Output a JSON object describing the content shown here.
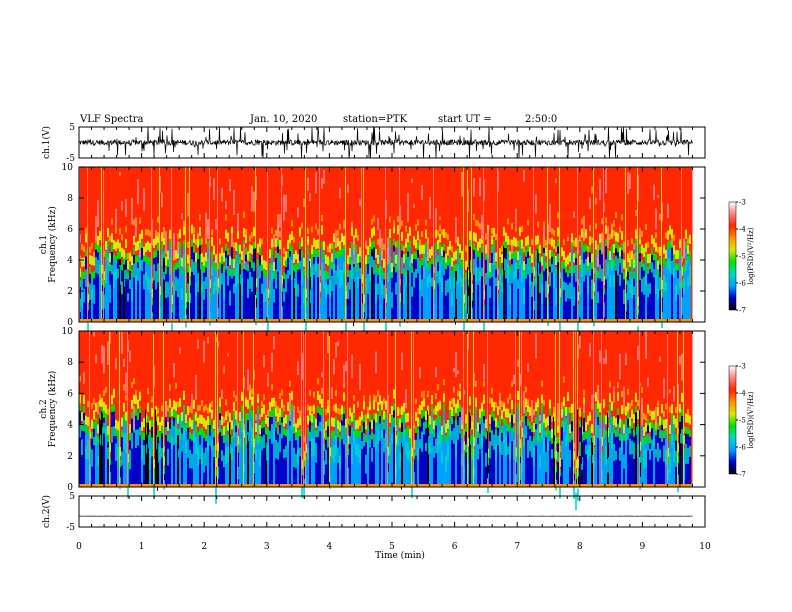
{
  "header": {
    "title": "VLF Spectra",
    "date": "Jan. 10, 2020",
    "station": "station=PTK",
    "start": "start UT =",
    "start_time": "2:50:0"
  },
  "chart_data": [
    {
      "type": "line",
      "name": "ch1-waveform",
      "ylabel": "ch.1(V)",
      "ylim": [
        -5,
        5
      ],
      "yticks": [
        "5",
        "-5"
      ],
      "xlim": [
        0,
        10
      ],
      "baseline": 0,
      "noise_amplitude": 3.5,
      "x_end": 9.8
    },
    {
      "type": "heatmap",
      "name": "ch1-spectrogram",
      "ylabel_top": "ch.1",
      "ylabel": "Frequency (kHz)",
      "ylim": [
        0,
        10
      ],
      "yticks": [
        "0",
        "2",
        "4",
        "6",
        "8",
        "10"
      ],
      "xlim": [
        0,
        10
      ],
      "x_end": 9.8,
      "colorbar": {
        "label": "log(PSD)(V²/Hz)",
        "range": [
          -7,
          -3
        ],
        "ticks": [
          "-3",
          "-4",
          "-5",
          "-6",
          "-7"
        ],
        "colors": [
          "#000000",
          "#0000c8",
          "#00a0ff",
          "#00d8c8",
          "#00e000",
          "#d8e800",
          "#ff9000",
          "#ff2800",
          "#ff8080",
          "#ffffff"
        ]
      }
    },
    {
      "type": "heatmap",
      "name": "ch2-spectrogram",
      "ylabel_top": "ch.2",
      "ylabel": "Frequency (kHz)",
      "ylim": [
        0,
        10
      ],
      "yticks": [
        "0",
        "2",
        "4",
        "6",
        "8",
        "10"
      ],
      "xlim": [
        0,
        10
      ],
      "x_end": 9.8,
      "colorbar": {
        "label": "log(PSD)(V²/Hz)",
        "range": [
          -7,
          -3
        ],
        "ticks": [
          "-3",
          "-4",
          "-5",
          "-6",
          "-7"
        ],
        "colors": [
          "#000000",
          "#0000c8",
          "#00a0ff",
          "#00d8c8",
          "#00e000",
          "#d8e800",
          "#ff9000",
          "#ff2800",
          "#ff8080",
          "#ffffff"
        ]
      }
    },
    {
      "type": "line",
      "name": "ch2-waveform",
      "ylabel": "ch.2(V)",
      "ylim": [
        -5,
        5
      ],
      "yticks": [
        "5",
        "-5"
      ],
      "xlim": [
        0,
        10
      ],
      "baseline": -1.5,
      "noise_amplitude": 0.15,
      "x_end": 9.8
    }
  ],
  "xaxis": {
    "label": "Time (min)",
    "ticks": [
      "0",
      "1",
      "2",
      "3",
      "4",
      "5",
      "6",
      "7",
      "8",
      "9",
      "10"
    ]
  }
}
